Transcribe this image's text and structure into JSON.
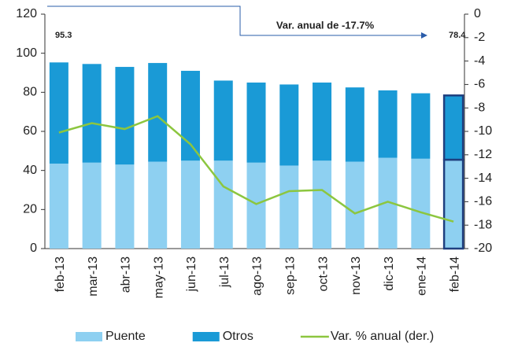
{
  "chart_data": {
    "type": "bar",
    "categories": [
      "feb-13",
      "mar-13",
      "abr-13",
      "may-13",
      "jun-13",
      "jul-13",
      "ago-13",
      "sep-13",
      "oct-13",
      "nov-13",
      "dic-13",
      "ene-14",
      "feb-14"
    ],
    "series": [
      {
        "name": "Puente",
        "color": "#8ed0f1",
        "values": [
          43.5,
          44,
          43,
          44.5,
          45,
          45,
          44,
          42.5,
          45,
          44.5,
          46.5,
          46,
          45.5
        ]
      },
      {
        "name": "Otros",
        "color": "#1a9ad6",
        "values": [
          51.8,
          50.5,
          50,
          50.5,
          46,
          41,
          41,
          41.5,
          40,
          38,
          34.5,
          33.5,
          32.9
        ]
      },
      {
        "name": "Var. % anual (der.)",
        "color": "#8cc63f",
        "axis": "y2",
        "type": "line",
        "values": [
          -10.1,
          -9.3,
          -9.8,
          -8.7,
          -11.1,
          -14.7,
          -16.2,
          -15.1,
          -15.0,
          -17.0,
          -16.0,
          -16.9,
          -17.7
        ]
      }
    ],
    "annotations": [
      "95.3",
      "78.4",
      "Var. anual de -17.7%"
    ],
    "ylim": [
      0,
      120
    ],
    "yticks": [
      0,
      20,
      40,
      60,
      80,
      100,
      120
    ],
    "y2lim": [
      -20,
      0
    ],
    "y2ticks": [
      0,
      -2,
      -4,
      -6,
      -8,
      -10,
      -12,
      -14,
      -16,
      -18,
      -20
    ],
    "stacked": true,
    "legend": "bottom"
  }
}
